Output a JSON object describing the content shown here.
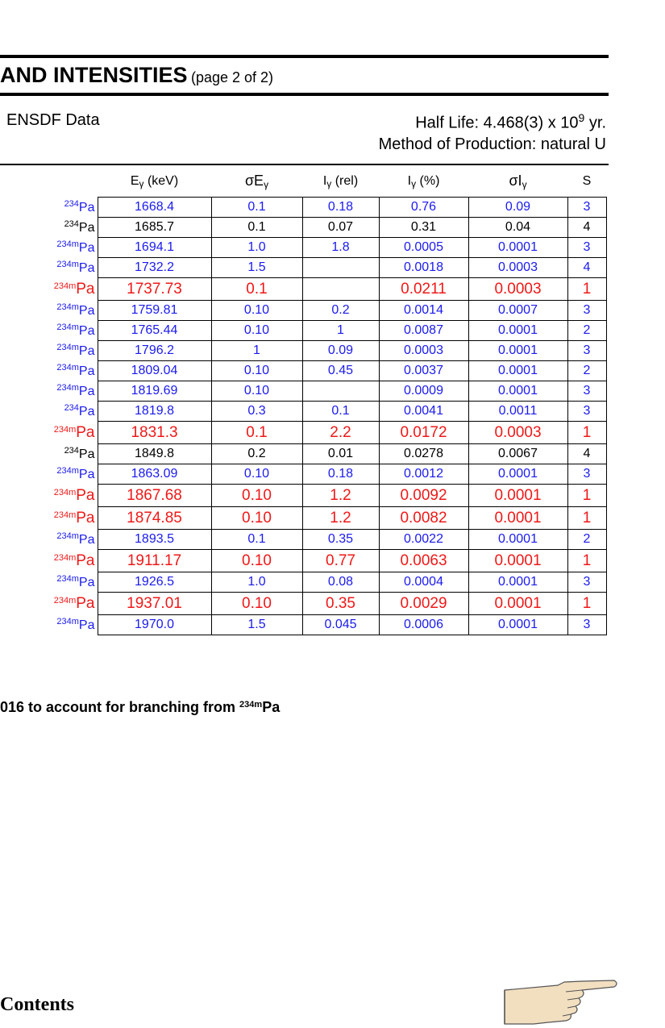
{
  "header": {
    "title": "AND INTENSITIES",
    "page": "(page 2 of 2)",
    "source": "ENSDF Data",
    "half_life_prefix": "Half Life: 4.468(3) x 10",
    "half_life_exp": "9",
    "half_life_suffix": " yr.",
    "production": "Method of Production: natural U"
  },
  "columns": {
    "energy": [
      "E",
      "γ",
      " (keV)"
    ],
    "sigma_energy": [
      "σE",
      "γ",
      ""
    ],
    "intensity_rel": [
      "I",
      "γ",
      " (rel)"
    ],
    "intensity_pct": [
      "I",
      "γ",
      " (%)"
    ],
    "sigma_intensity": [
      "σI",
      "γ",
      ""
    ],
    "s": [
      "S",
      "",
      ""
    ]
  },
  "rows": [
    {
      "mass": "234",
      "el": "Pa",
      "e": "1668.4",
      "se": "0.1",
      "irel": "0.18",
      "ipct": "0.76",
      "si": "0.09",
      "s": "3",
      "style": "blue"
    },
    {
      "mass": "234",
      "el": "Pa",
      "e": "1685.7",
      "se": "0.1",
      "irel": "0.07",
      "ipct": "0.31",
      "si": "0.04",
      "s": "4",
      "style": "black"
    },
    {
      "mass": "234m",
      "el": "Pa",
      "e": "1694.1",
      "se": "1.0",
      "irel": "1.8",
      "ipct": "0.0005",
      "si": "0.0001",
      "s": "3",
      "style": "blue"
    },
    {
      "mass": "234m",
      "el": "Pa",
      "e": "1732.2",
      "se": "1.5",
      "irel": "",
      "ipct": "0.0018",
      "si": "0.0003",
      "s": "4",
      "style": "blue"
    },
    {
      "mass": "234m",
      "el": "Pa",
      "e": "1737.73",
      "se": "0.1",
      "irel": "",
      "ipct": "0.0211",
      "si": "0.0003",
      "s": "1",
      "style": "red"
    },
    {
      "mass": "234m",
      "el": "Pa",
      "e": "1759.81",
      "se": "0.10",
      "irel": "0.2",
      "ipct": "0.0014",
      "si": "0.0007",
      "s": "3",
      "style": "blue"
    },
    {
      "mass": "234m",
      "el": "Pa",
      "e": "1765.44",
      "se": "0.10",
      "irel": "1",
      "ipct": "0.0087",
      "si": "0.0001",
      "s": "2",
      "style": "blue"
    },
    {
      "mass": "234m",
      "el": "Pa",
      "e": "1796.2",
      "se": "1",
      "irel": "0.09",
      "ipct": "0.0003",
      "si": "0.0001",
      "s": "3",
      "style": "blue"
    },
    {
      "mass": "234m",
      "el": "Pa",
      "e": "1809.04",
      "se": "0.10",
      "irel": "0.45",
      "ipct": "0.0037",
      "si": "0.0001",
      "s": "2",
      "style": "blue"
    },
    {
      "mass": "234m",
      "el": "Pa",
      "e": "1819.69",
      "se": "0.10",
      "irel": "",
      "ipct": "0.0009",
      "si": "0.0001",
      "s": "3",
      "style": "blue"
    },
    {
      "mass": "234",
      "el": "Pa",
      "e": "1819.8",
      "se": "0.3",
      "irel": "0.1",
      "ipct": "0.0041",
      "si": "0.0011",
      "s": "3",
      "style": "blue"
    },
    {
      "mass": "234m",
      "el": "Pa",
      "e": "1831.3",
      "se": "0.1",
      "irel": "2.2",
      "ipct": "0.0172",
      "si": "0.0003",
      "s": "1",
      "style": "red"
    },
    {
      "mass": "234",
      "el": "Pa",
      "e": "1849.8",
      "se": "0.2",
      "irel": "0.01",
      "ipct": "0.0278",
      "si": "0.0067",
      "s": "4",
      "style": "black"
    },
    {
      "mass": "234m",
      "el": "Pa",
      "e": "1863.09",
      "se": "0.10",
      "irel": "0.18",
      "ipct": "0.0012",
      "si": "0.0001",
      "s": "3",
      "style": "blue"
    },
    {
      "mass": "234m",
      "el": "Pa",
      "e": "1867.68",
      "se": "0.10",
      "irel": "1.2",
      "ipct": "0.0092",
      "si": "0.0001",
      "s": "1",
      "style": "red"
    },
    {
      "mass": "234m",
      "el": "Pa",
      "e": "1874.85",
      "se": "0.10",
      "irel": "1.2",
      "ipct": "0.0082",
      "si": "0.0001",
      "s": "1",
      "style": "red"
    },
    {
      "mass": "234m",
      "el": "Pa",
      "e": "1893.5",
      "se": "0.1",
      "irel": "0.35",
      "ipct": "0.0022",
      "si": "0.0001",
      "s": "2",
      "style": "blue"
    },
    {
      "mass": "234m",
      "el": "Pa",
      "e": "1911.17",
      "se": "0.10",
      "irel": "0.77",
      "ipct": "0.0063",
      "si": "0.0001",
      "s": "1",
      "style": "red"
    },
    {
      "mass": "234m",
      "el": "Pa",
      "e": "1926.5",
      "se": "1.0",
      "irel": "0.08",
      "ipct": "0.0004",
      "si": "0.0001",
      "s": "3",
      "style": "blue"
    },
    {
      "mass": "234m",
      "el": "Pa",
      "e": "1937.01",
      "se": "0.10",
      "irel": "0.35",
      "ipct": "0.0029",
      "si": "0.0001",
      "s": "1",
      "style": "red"
    },
    {
      "mass": "234m",
      "el": "Pa",
      "e": "1970.0",
      "se": "1.5",
      "irel": "0.045",
      "ipct": "0.0006",
      "si": "0.0001",
      "s": "3",
      "style": "blue"
    }
  ],
  "footnote": {
    "text": "016 to account for branching from ",
    "mass": "234m",
    "el": "Pa"
  },
  "nav": {
    "contents_label": "Contents",
    "next_icon": "pointing-hand-icon"
  },
  "colors": {
    "blue": "#1a1af0",
    "red": "#f01818",
    "black": "#000000"
  }
}
